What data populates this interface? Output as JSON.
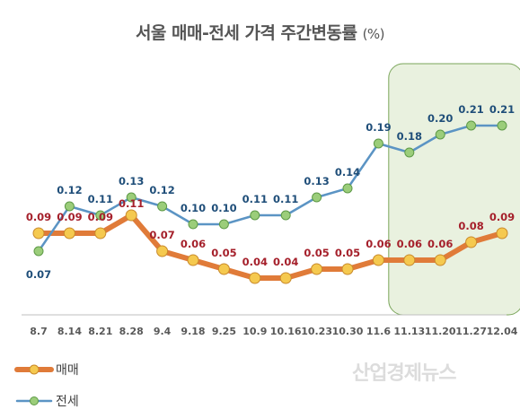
{
  "chart_data": {
    "type": "line",
    "title": "서울 매매-전세 가격 주간변동률",
    "unit": "(%)",
    "categories": [
      "8.7",
      "8.14",
      "8.21",
      "8.28",
      "9.4",
      "9.18",
      "9.25",
      "10.9",
      "10.16",
      "10.23",
      "10.30",
      "11.6",
      "11.13",
      "11.20",
      "11.27",
      "12.04"
    ],
    "series": [
      {
        "name": "매매",
        "color": "#e07b39",
        "marker_color": "#f5c94f",
        "label_color": "#a5202b",
        "values": [
          0.09,
          0.09,
          0.09,
          0.11,
          0.07,
          0.06,
          0.05,
          0.04,
          0.04,
          0.05,
          0.05,
          0.06,
          0.06,
          0.06,
          0.08,
          0.09
        ],
        "labels": [
          "0.09",
          "0.09",
          "0.09",
          "0.11",
          "0.07",
          "0.06",
          "0.05",
          "0.04",
          "0.04",
          "0.05",
          "0.05",
          "0.06",
          "0.06",
          "0.06",
          "0.08",
          "0.09"
        ]
      },
      {
        "name": "전세",
        "color": "#5b94c4",
        "marker_color": "#9bcd7a",
        "label_color": "#1f4e79",
        "values": [
          0.07,
          0.12,
          0.11,
          0.13,
          0.12,
          0.1,
          0.1,
          0.11,
          0.11,
          0.13,
          0.14,
          0.19,
          0.18,
          0.2,
          0.21,
          0.21
        ],
        "labels": [
          "0.07",
          "0.12",
          "0.11",
          "0.13",
          "0.12",
          "0.10",
          "0.10",
          "0.11",
          "0.11",
          "0.13",
          "0.14",
          "0.19",
          "0.18",
          "0.20",
          "0.21",
          "0.21"
        ]
      }
    ],
    "highlight_categories": [
      "11.13",
      "11.20",
      "11.27",
      "12.04"
    ],
    "highlight_color": "#e9f1df",
    "highlight_border": "#7aa55a",
    "legend_position": "bottom-left",
    "grid": false
  },
  "watermark": "산업경제뉴스"
}
